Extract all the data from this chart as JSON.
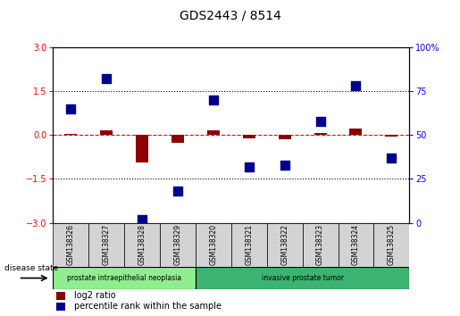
{
  "title": "GDS2443 / 8514",
  "samples": [
    "GSM138326",
    "GSM138327",
    "GSM138328",
    "GSM138329",
    "GSM138320",
    "GSM138321",
    "GSM138322",
    "GSM138323",
    "GSM138324",
    "GSM138325"
  ],
  "log2_ratio": [
    0.05,
    0.15,
    -0.95,
    -0.25,
    0.15,
    -0.1,
    -0.15,
    0.08,
    0.22,
    -0.05
  ],
  "percentile_rank": [
    65,
    82,
    2,
    18,
    70,
    32,
    33,
    58,
    78,
    37
  ],
  "disease_groups": [
    {
      "label": "prostate intraepithelial neoplasia",
      "start": 0,
      "end": 4,
      "color": "#90ee90"
    },
    {
      "label": "invasive prostate tumor",
      "start": 4,
      "end": 10,
      "color": "#3cb371"
    }
  ],
  "ylim_left": [
    -3,
    3
  ],
  "ylim_right": [
    0,
    100
  ],
  "yticks_left": [
    -3,
    -1.5,
    0,
    1.5,
    3
  ],
  "yticks_right": [
    0,
    25,
    50,
    75,
    100
  ],
  "hlines": [
    1.5,
    -1.5
  ],
  "bar_color": "#8b0000",
  "scatter_color": "#00008b",
  "bar_width": 0.35,
  "scatter_size": 45,
  "bg_color": "#ffffff",
  "plot_bg": "#ffffff",
  "header_bg": "#d3d3d3",
  "legend_red_label": "log2 ratio",
  "legend_blue_label": "percentile rank within the sample",
  "disease_state_label": "disease state"
}
